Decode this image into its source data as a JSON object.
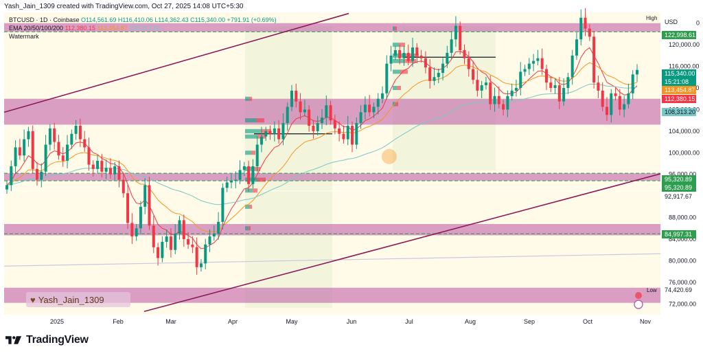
{
  "header": {
    "created_by": "Yash_Jain_1309 created with TradingView.com, Oct 27, 2025 14:08 UTC+5:30"
  },
  "legend": {
    "symbol": "BTCUSD · 1D · Coinbase",
    "ohlc": "O114,561.69 H116,410.06 L114,362.43 C115,340.00 +791.91 (+0.69%)",
    "ema_label": "EMA 20/50/100/200",
    "ema_values": [
      "112,380.15",
      "113,454.87",
      "108,313.20"
    ],
    "watermark": "Watermark"
  },
  "author_tag": "Yash_Jain_1309",
  "brand": "TradingView",
  "currency": "USD",
  "price_labels": {
    "high": "High",
    "low": "Low",
    "low_value": "74,420.69",
    "zone_top": "122,998.61",
    "last": "115,340.00",
    "countdown": "15:21:08",
    "ema_orange": "113,454.87",
    "ema_red": "112,380.15",
    "ema_cyan": "108,313.20",
    "zone_mid_a": "95,320.89",
    "zone_mid_b": "95,320.89",
    "level_92k": "92,917.67",
    "zone_low": "84,997.31"
  },
  "colors": {
    "up": "#089981",
    "down": "#f23645",
    "zone": "#c060a8",
    "channel": "#8b1a5a",
    "ema_red": "#f23645",
    "ema_orange": "#f7941d",
    "ema_cyan": "#79c8c8"
  },
  "chart_data": {
    "type": "candlestick",
    "symbol": "BTCUSD",
    "interval": "1D",
    "y_axis_ticks": [
      72000,
      76000,
      80000,
      84000,
      88000,
      92000,
      96000,
      100000,
      104000,
      108000,
      112000,
      116000,
      120000,
      124000
    ],
    "x_axis_ticks": [
      "2025",
      "Feb",
      "Mar",
      "Apr",
      "May",
      "Jun",
      "Jul",
      "Aug",
      "Sep",
      "Oct",
      "Nov"
    ],
    "ylim": [
      70000,
      126000
    ],
    "zones": [
      {
        "low": 122400,
        "high": 124000
      },
      {
        "low": 105200,
        "high": 110000
      },
      {
        "low": 94800,
        "high": 96200
      },
      {
        "low": 84700,
        "high": 86800
      },
      {
        "low": 72200,
        "high": 75000
      }
    ],
    "horizontal_levels": [
      122998.61,
      95320.89,
      92917.67,
      84997.31
    ],
    "last_price": 115340.0,
    "high_label_price": 124000,
    "low_price": 74420.69,
    "closes_approx": [
      94000,
      97500,
      101000,
      99500,
      102500,
      104000,
      97000,
      95000,
      96500,
      101500,
      104500,
      102000,
      99500,
      98500,
      101500,
      103500,
      105000,
      102500,
      101000,
      97800,
      97000,
      98500,
      96500,
      97200,
      96000,
      97500,
      95000,
      92500,
      87000,
      84500,
      86000,
      90000,
      94000,
      86500,
      82500,
      80500,
      83500,
      84500,
      82000,
      85000,
      87500,
      84000,
      83000,
      82500,
      78800,
      79500,
      83000,
      84500,
      85000,
      87200,
      93500,
      94500,
      94800,
      95000,
      96800,
      97500,
      94200,
      97500,
      101500,
      103000,
      104000,
      103500,
      104500,
      102500,
      105500,
      108500,
      111500,
      109500,
      107500,
      108000,
      105000,
      104000,
      105500,
      106500,
      108800,
      106000,
      104500,
      103500,
      102500,
      105000,
      101500,
      105500,
      107500,
      108900,
      107500,
      108500,
      110000,
      111000,
      116500,
      118000,
      119000,
      117500,
      118500,
      117000,
      119500,
      118000,
      117500,
      115800,
      113300,
      114000,
      114800,
      116500,
      118500,
      121000,
      123500,
      119000,
      117500,
      115500,
      113500,
      111500,
      112500,
      113000,
      109000,
      110500,
      109000,
      108000,
      110500,
      111500,
      112000,
      115000,
      115500,
      116500,
      117000,
      117500,
      115500,
      113000,
      112000,
      112500,
      109500,
      112000,
      114000,
      118000,
      121000,
      125000,
      123000,
      121500,
      113000,
      111500,
      108500,
      107000,
      111000,
      110500,
      108000,
      109000,
      111000,
      114500,
      115340
    ]
  }
}
